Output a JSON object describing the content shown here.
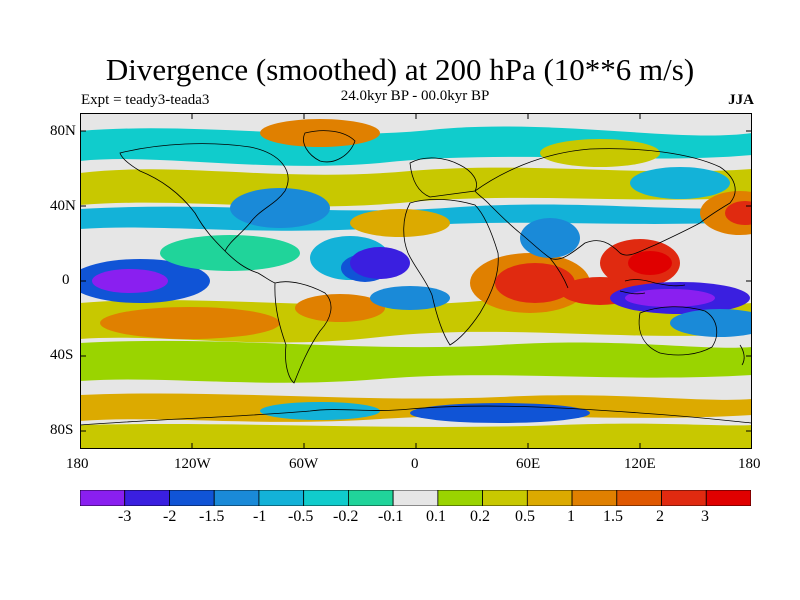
{
  "header": {
    "title": "Divergence (smoothed) at 200 hPa (10**6 m/s)",
    "experiment": "Expt = teady3-teada3",
    "period": "24.0kyr BP - 00.0kyr BP",
    "season": "JJA"
  },
  "map": {
    "lat_labels": [
      "80N",
      "40N",
      "0",
      "40S",
      "80S"
    ],
    "lon_labels": [
      "180",
      "120W",
      "60W",
      "0",
      "60E",
      "120E",
      "180"
    ]
  },
  "colorbar": {
    "labels": [
      "-3",
      "-2",
      "-1.5",
      "-1",
      "-0.5",
      "-0.2",
      "-0.1",
      "0.1",
      "0.2",
      "0.5",
      "1",
      "1.5",
      "2",
      "3"
    ],
    "colors": [
      "#8a1ff0",
      "#3a1fe0",
      "#1054d6",
      "#1a8ad8",
      "#13b2d8",
      "#10cccc",
      "#20d49a",
      "#e6e6e6",
      "#9ad400",
      "#c8c800",
      "#dcaa00",
      "#e08000",
      "#e05800",
      "#e02a10",
      "#e00000"
    ]
  }
}
